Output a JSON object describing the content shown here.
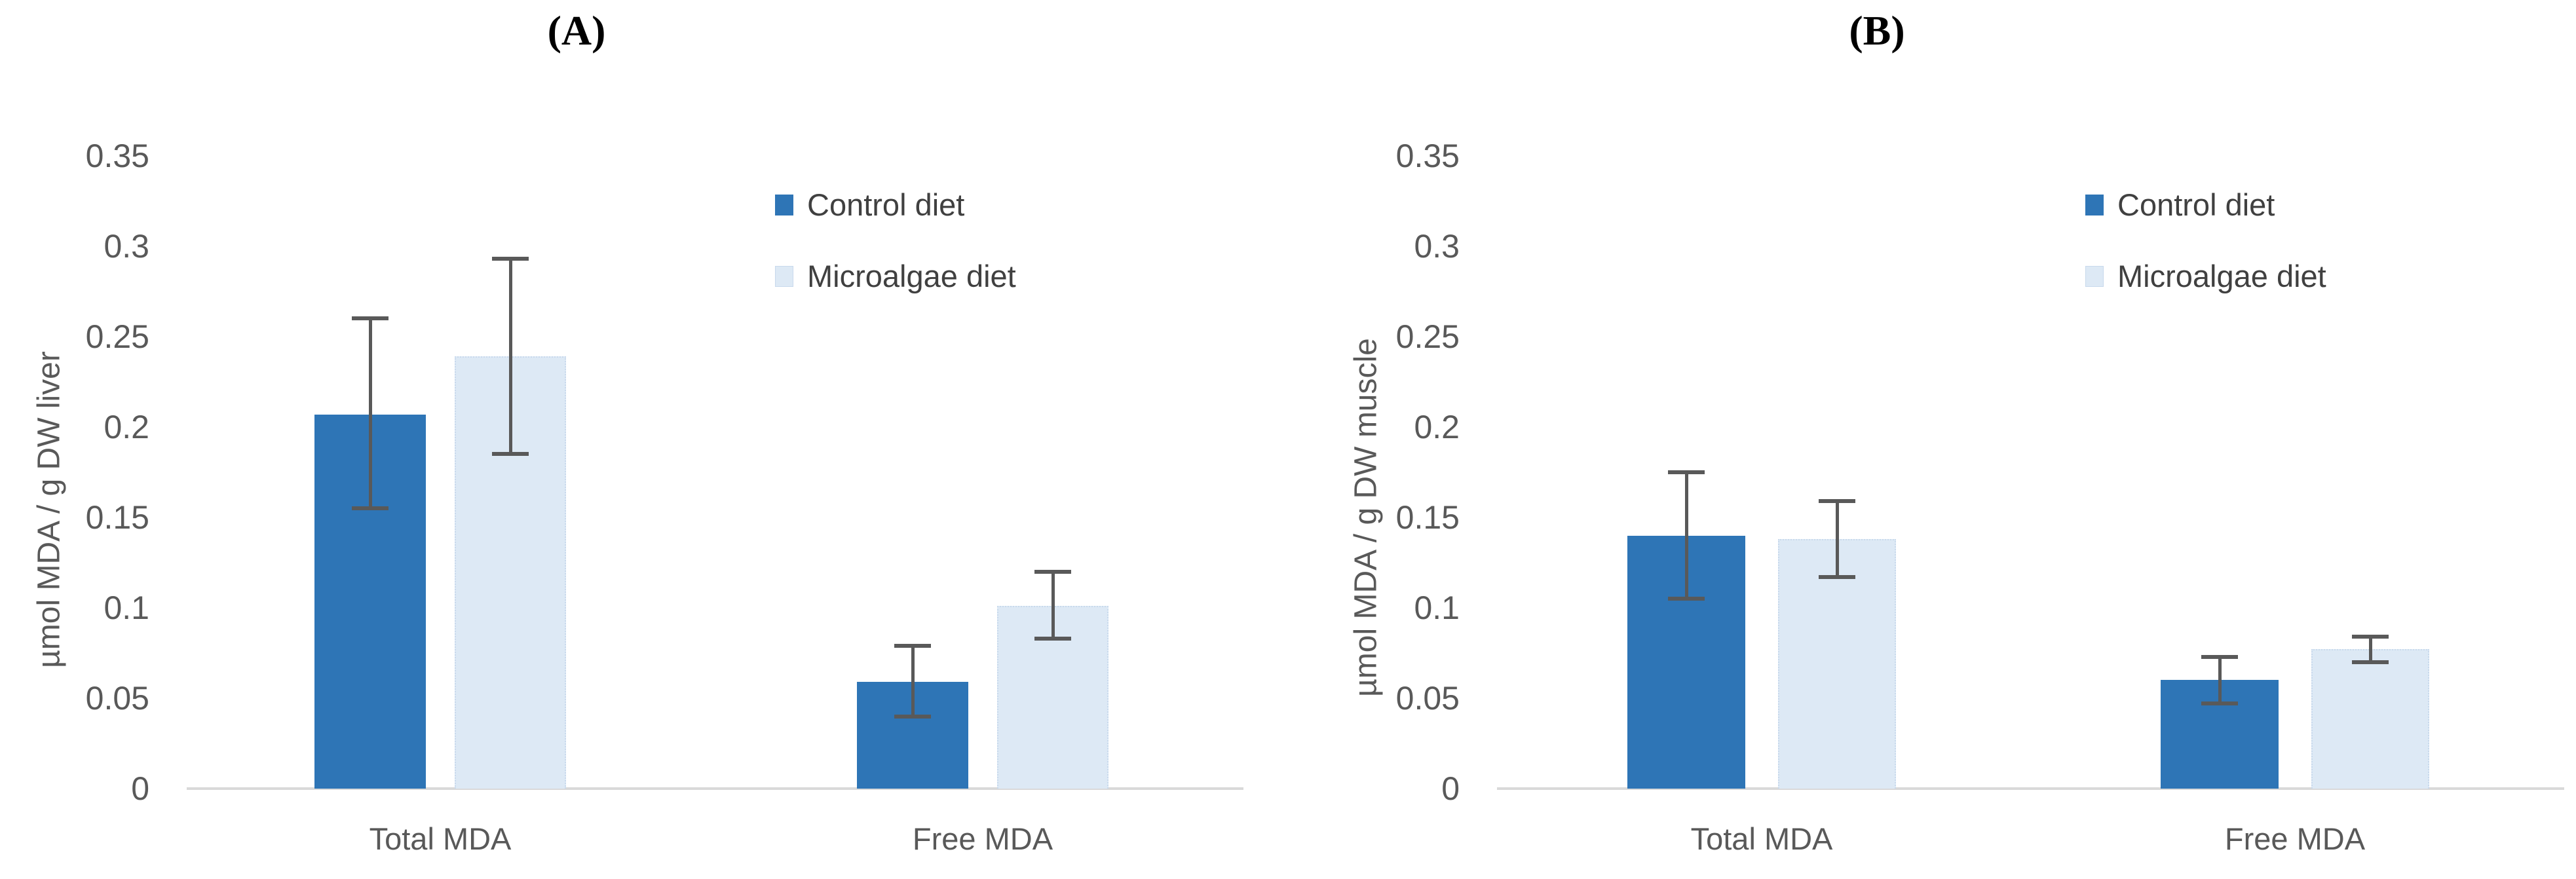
{
  "figure_title_left": "(A)",
  "figure_title_right": "(B)",
  "style": {
    "control_color": "#2e75b6",
    "microalgae_color": "#dde9f5",
    "microalgae_border_color": "#c8d9ec",
    "error_bar_color": "#595959",
    "axis_line_color": "#d9d9d9",
    "tick_text_color": "#595959",
    "legend_text_color": "#404040",
    "background_color": "#ffffff"
  },
  "chart_data": [
    {
      "type": "bar",
      "panel_label": "(A)",
      "ylabel": "µmol MDA / g DW liver",
      "categories": [
        "Total MDA",
        "Free MDA"
      ],
      "series": [
        {
          "name": "Control diet",
          "color": "#2e75b6",
          "values": [
            0.207,
            0.059
          ],
          "error_low": [
            0.155,
            0.04
          ],
          "error_high": [
            0.26,
            0.079
          ]
        },
        {
          "name": "Microalgae diet",
          "color": "#dde9f5",
          "values": [
            0.239,
            0.101
          ],
          "error_low": [
            0.185,
            0.083
          ],
          "error_high": [
            0.293,
            0.12
          ]
        }
      ],
      "ylim": [
        0,
        0.35
      ],
      "ytick_labels": [
        "0",
        "0.05",
        "0.1",
        "0.15",
        "0.2",
        "0.25",
        "0.3",
        "0.35"
      ],
      "ytick_values": [
        0,
        0.05,
        0.1,
        0.15,
        0.2,
        0.25,
        0.3,
        0.35
      ],
      "grid": false,
      "legend_position": "upper-right-inside",
      "error_bars": true
    },
    {
      "type": "bar",
      "panel_label": "(B)",
      "ylabel": "µmol MDA / g DW muscle",
      "categories": [
        "Total MDA",
        "Free MDA"
      ],
      "series": [
        {
          "name": "Control diet",
          "color": "#2e75b6",
          "values": [
            0.14,
            0.06
          ],
          "error_low": [
            0.105,
            0.047
          ],
          "error_high": [
            0.175,
            0.073
          ]
        },
        {
          "name": "Microalgae diet",
          "color": "#dde9f5",
          "values": [
            0.138,
            0.077
          ],
          "error_low": [
            0.117,
            0.07
          ],
          "error_high": [
            0.159,
            0.084
          ]
        }
      ],
      "ylim": [
        0,
        0.35
      ],
      "ytick_labels": [
        "0",
        "0.05",
        "0.1",
        "0.15",
        "0.2",
        "0.25",
        "0.3",
        "0.35"
      ],
      "ytick_values": [
        0,
        0.05,
        0.1,
        0.15,
        0.2,
        0.25,
        0.3,
        0.35
      ],
      "grid": false,
      "legend_position": "upper-right-inside",
      "error_bars": true
    }
  ]
}
